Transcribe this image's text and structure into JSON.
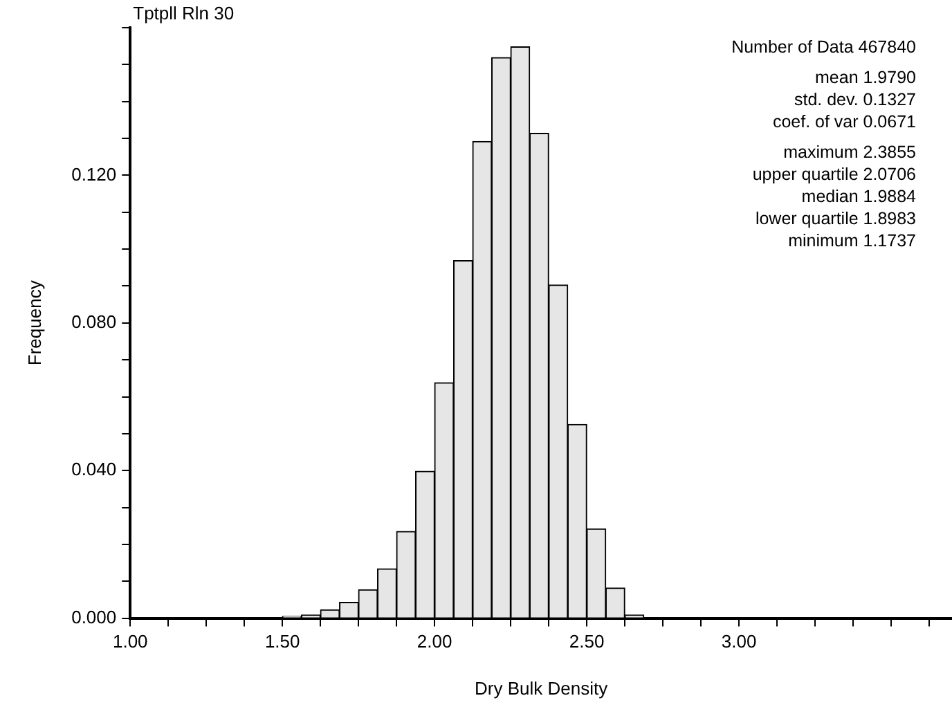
{
  "chart_data": {
    "type": "histogram",
    "title": "Tptpll Rln 30",
    "xlabel": "Dry Bulk Density",
    "ylabel": "Frequency",
    "bins": [
      1.5,
      1.5625,
      1.625,
      1.6875,
      1.75,
      1.8125,
      1.875,
      1.9375,
      2.0,
      2.0625,
      2.125,
      2.1875,
      2.25,
      2.3125,
      2.375,
      2.4375,
      2.5,
      2.5625,
      2.625,
      2.6875
    ],
    "values": [
      0.0005,
      0.0009,
      0.0023,
      0.0043,
      0.0077,
      0.0134,
      0.0235,
      0.0398,
      0.0638,
      0.0969,
      0.1292,
      0.1519,
      0.1548,
      0.1314,
      0.0903,
      0.0525,
      0.0242,
      0.0082,
      0.0009
    ],
    "color": "#e6e6e6",
    "xlim": [
      1.0,
      3.7
    ],
    "xticks": [
      {
        "value": 1.0,
        "label": "1.00"
      },
      {
        "value": 1.125,
        "label": null
      },
      {
        "value": 1.25,
        "label": null
      },
      {
        "value": 1.375,
        "label": null
      },
      {
        "value": 1.5,
        "label": "1.50"
      },
      {
        "value": 1.625,
        "label": null
      },
      {
        "value": 1.75,
        "label": null
      },
      {
        "value": 1.875,
        "label": null
      },
      {
        "value": 2.0,
        "label": "2.00"
      },
      {
        "value": 2.125,
        "label": null
      },
      {
        "value": 2.25,
        "label": null
      },
      {
        "value": 2.375,
        "label": null
      },
      {
        "value": 2.5,
        "label": "2.50"
      },
      {
        "value": 2.625,
        "label": null
      },
      {
        "value": 2.75,
        "label": null
      },
      {
        "value": 2.875,
        "label": null
      },
      {
        "value": 3.0,
        "label": "3.00"
      },
      {
        "value": 3.125,
        "label": null
      },
      {
        "value": 3.25,
        "label": null
      },
      {
        "value": 3.375,
        "label": null
      },
      {
        "value": 3.5,
        "label": null
      },
      {
        "value": 3.625,
        "label": null
      }
    ],
    "ylim": [
      0,
      0.16
    ],
    "yticks": [
      {
        "value": 0.0,
        "label": "0.000"
      },
      {
        "value": 0.01,
        "label": null
      },
      {
        "value": 0.02,
        "label": null
      },
      {
        "value": 0.03,
        "label": null
      },
      {
        "value": 0.04,
        "label": "0.040"
      },
      {
        "value": 0.05,
        "label": null
      },
      {
        "value": 0.06,
        "label": null
      },
      {
        "value": 0.07,
        "label": null
      },
      {
        "value": 0.08,
        "label": "0.080"
      },
      {
        "value": 0.09,
        "label": null
      },
      {
        "value": 0.1,
        "label": null
      },
      {
        "value": 0.11,
        "label": null
      },
      {
        "value": 0.12,
        "label": "0.120"
      },
      {
        "value": 0.13,
        "label": null
      },
      {
        "value": 0.14,
        "label": null
      },
      {
        "value": 0.15,
        "label": null
      },
      {
        "value": 0.16,
        "label": null
      }
    ],
    "grid": false,
    "legend": false,
    "annotations": [
      "Number of Data 467840",
      "mean 1.9790",
      "std. dev. 0.1327",
      "coef. of var 0.0671",
      "maximum 2.3855",
      "upper quartile 2.0706",
      "median 1.9884",
      "lower quartile 1.8983",
      "minimum 1.1737"
    ]
  }
}
